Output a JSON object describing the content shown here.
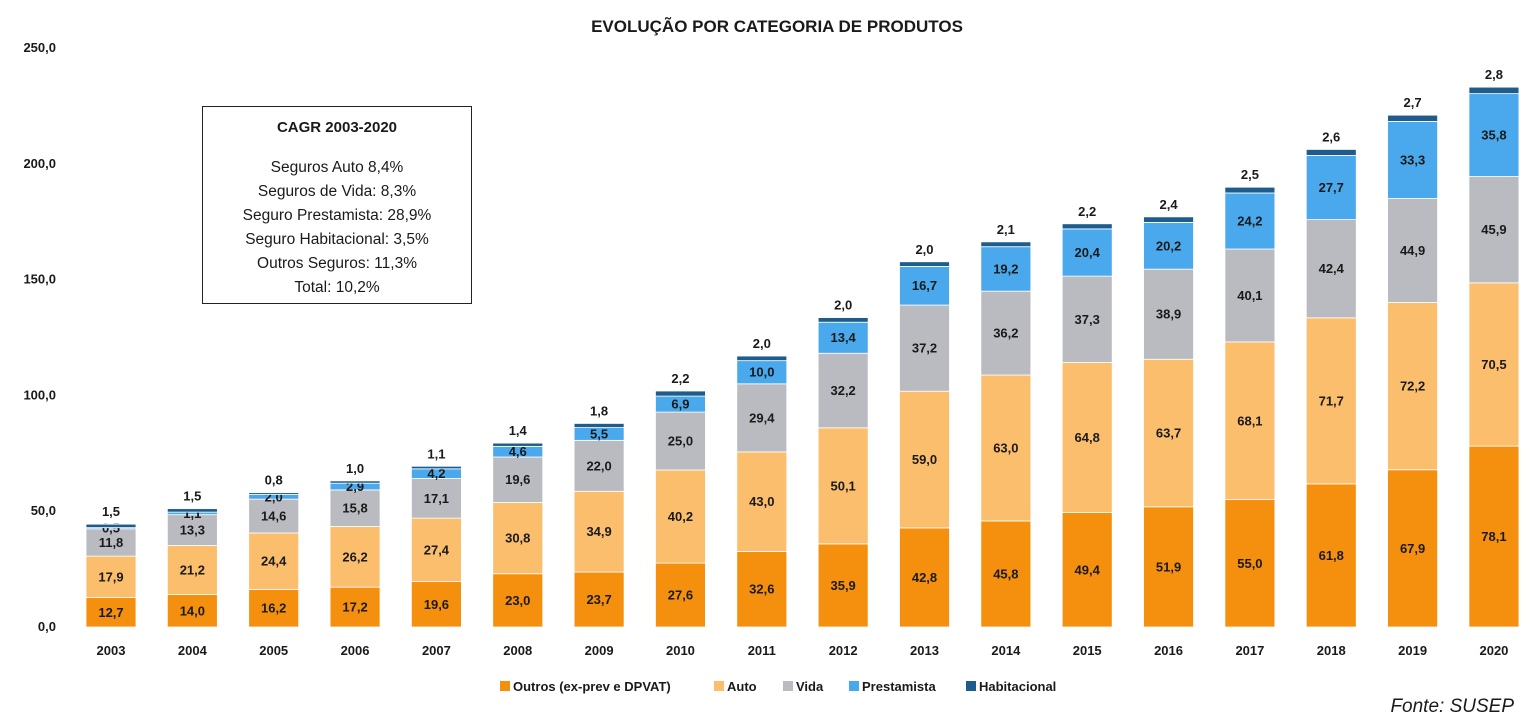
{
  "chart_data": {
    "type": "bar",
    "stacked": true,
    "title": "EVOLUÇÃO POR CATEGORIA DE PRODUTOS",
    "categories": [
      "2003",
      "2004",
      "2005",
      "2006",
      "2007",
      "2008",
      "2009",
      "2010",
      "2011",
      "2012",
      "2013",
      "2014",
      "2015",
      "2016",
      "2017",
      "2018",
      "2019",
      "2020"
    ],
    "ylim": [
      0,
      250
    ],
    "yticks": [
      "0,0",
      "50,0",
      "100,0",
      "150,0",
      "200,0",
      "250,0"
    ],
    "ytick_values": [
      0,
      50,
      100,
      150,
      200,
      250
    ],
    "grid": false,
    "legend_position": "bottom",
    "series": [
      {
        "name": "Outros (ex-prev e DPVAT)",
        "color": "#F5900F",
        "values": [
          12.7,
          14.0,
          16.2,
          17.2,
          19.6,
          23.0,
          23.7,
          27.6,
          32.6,
          35.9,
          42.8,
          45.8,
          49.4,
          51.9,
          55.0,
          61.8,
          67.9,
          78.1
        ],
        "labels": [
          "12,7",
          "14,0",
          "16,2",
          "17,2",
          "19,6",
          "23,0",
          "23,7",
          "27,6",
          "32,6",
          "35,9",
          "42,8",
          "45,8",
          "49,4",
          "51,9",
          "55,0",
          "61,8",
          "67,9",
          "78,1"
        ]
      },
      {
        "name": "Auto",
        "color": "#FBBE6D",
        "values": [
          17.9,
          21.2,
          24.4,
          26.2,
          27.4,
          30.8,
          34.9,
          40.2,
          43.0,
          50.1,
          59.0,
          63.0,
          64.8,
          63.7,
          68.1,
          71.7,
          72.2,
          70.5
        ],
        "labels": [
          "17,9",
          "21,2",
          "24,4",
          "26,2",
          "27,4",
          "30,8",
          "34,9",
          "40,2",
          "43,0",
          "50,1",
          "59,0",
          "63,0",
          "64,8",
          "63,7",
          "68,1",
          "71,7",
          "72,2",
          "70,5"
        ]
      },
      {
        "name": "Vida",
        "color": "#B9BBC0",
        "values": [
          11.8,
          13.3,
          14.6,
          15.8,
          17.1,
          19.6,
          22.0,
          25.0,
          29.4,
          32.2,
          37.2,
          36.2,
          37.3,
          38.9,
          40.1,
          42.4,
          44.9,
          45.9
        ],
        "labels": [
          "11,8",
          "13,3",
          "14,6",
          "15,8",
          "17,1",
          "19,6",
          "22,0",
          "25,0",
          "29,4",
          "32,2",
          "37,2",
          "36,2",
          "37,3",
          "38,9",
          "40,1",
          "42,4",
          "44,9",
          "45,9"
        ]
      },
      {
        "name": "Prestamista",
        "color": "#4AA9EC",
        "values": [
          0.5,
          1.1,
          2.0,
          2.9,
          4.2,
          4.6,
          5.5,
          6.9,
          10.0,
          13.4,
          16.7,
          19.2,
          20.4,
          20.2,
          24.2,
          27.7,
          33.3,
          35.8
        ],
        "labels": [
          "0,5",
          "1,1",
          "2,0",
          "2,9",
          "4,2",
          "4,6",
          "5,5",
          "6,9",
          "10,0",
          "13,4",
          "16,7",
          "19,2",
          "20,4",
          "20,2",
          "24,2",
          "27,7",
          "33,3",
          "35,8"
        ]
      },
      {
        "name": "Habitacional",
        "color": "#1F5C8E",
        "values": [
          1.5,
          1.5,
          0.8,
          1.0,
          1.1,
          1.4,
          1.8,
          2.2,
          2.0,
          2.0,
          2.0,
          2.1,
          2.2,
          2.4,
          2.5,
          2.6,
          2.7,
          2.8
        ],
        "labels": [
          "1,5",
          "1,5",
          "0,8",
          "1,0",
          "1,1",
          "1,4",
          "1,8",
          "2,2",
          "2,0",
          "2,0",
          "2,0",
          "2,1",
          "2,2",
          "2,4",
          "2,5",
          "2,6",
          "2,7",
          "2,8"
        ]
      }
    ]
  },
  "cagr_box": {
    "title": "CAGR 2003-2020",
    "lines": [
      "Seguros Auto 8,4%",
      "Seguros de Vida: 8,3%",
      "Seguro Prestamista: 28,9%",
      "Seguro Habitacional: 3,5%",
      "Outros Seguros: 11,3%",
      "Total: 10,2%"
    ]
  },
  "source": "Fonte: SUSEP"
}
